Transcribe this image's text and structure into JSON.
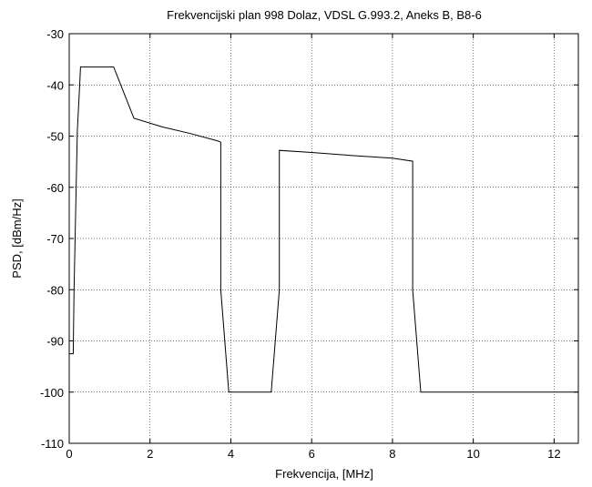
{
  "chart_data": {
    "type": "line",
    "title": "Frekvencijski plan 998 Dolaz, VDSL G.993.2, Aneks B, B8-6",
    "xlabel": "Frekvencija, [MHz]",
    "ylabel": "PSD, [dBm/Hz]",
    "xlim": [
      0,
      12.6
    ],
    "ylim": [
      -110,
      -30
    ],
    "xticks": [
      0,
      2,
      4,
      6,
      8,
      10,
      12
    ],
    "yticks": [
      -110,
      -100,
      -90,
      -80,
      -70,
      -60,
      -50,
      -40,
      -30
    ],
    "xtick_labels": [
      "0",
      "2",
      "4",
      "6",
      "8",
      "10",
      "12"
    ],
    "ytick_labels": [
      "-110",
      "-100",
      "-90",
      "-80",
      "-70",
      "-60",
      "-50",
      "-40",
      "-30"
    ],
    "grid": true,
    "series": [
      {
        "color": "#000000",
        "x": [
          0.0,
          0.1,
          0.12,
          0.2,
          0.26,
          0.28,
          1.1,
          1.6,
          2.3,
          3.0,
          3.7,
          3.75,
          3.75,
          3.95,
          5.0,
          5.2,
          5.2,
          6.0,
          7.0,
          8.0,
          8.5,
          8.5,
          8.7,
          12.6
        ],
        "y": [
          -92.5,
          -92.5,
          -80.0,
          -49.0,
          -40.0,
          -36.5,
          -36.5,
          -46.5,
          -48.2,
          -49.5,
          -51.0,
          -51.2,
          -80.0,
          -100.0,
          -100.0,
          -80.0,
          -52.8,
          -53.2,
          -53.8,
          -54.3,
          -54.9,
          -80.0,
          -100.0,
          -100.0
        ]
      }
    ]
  }
}
